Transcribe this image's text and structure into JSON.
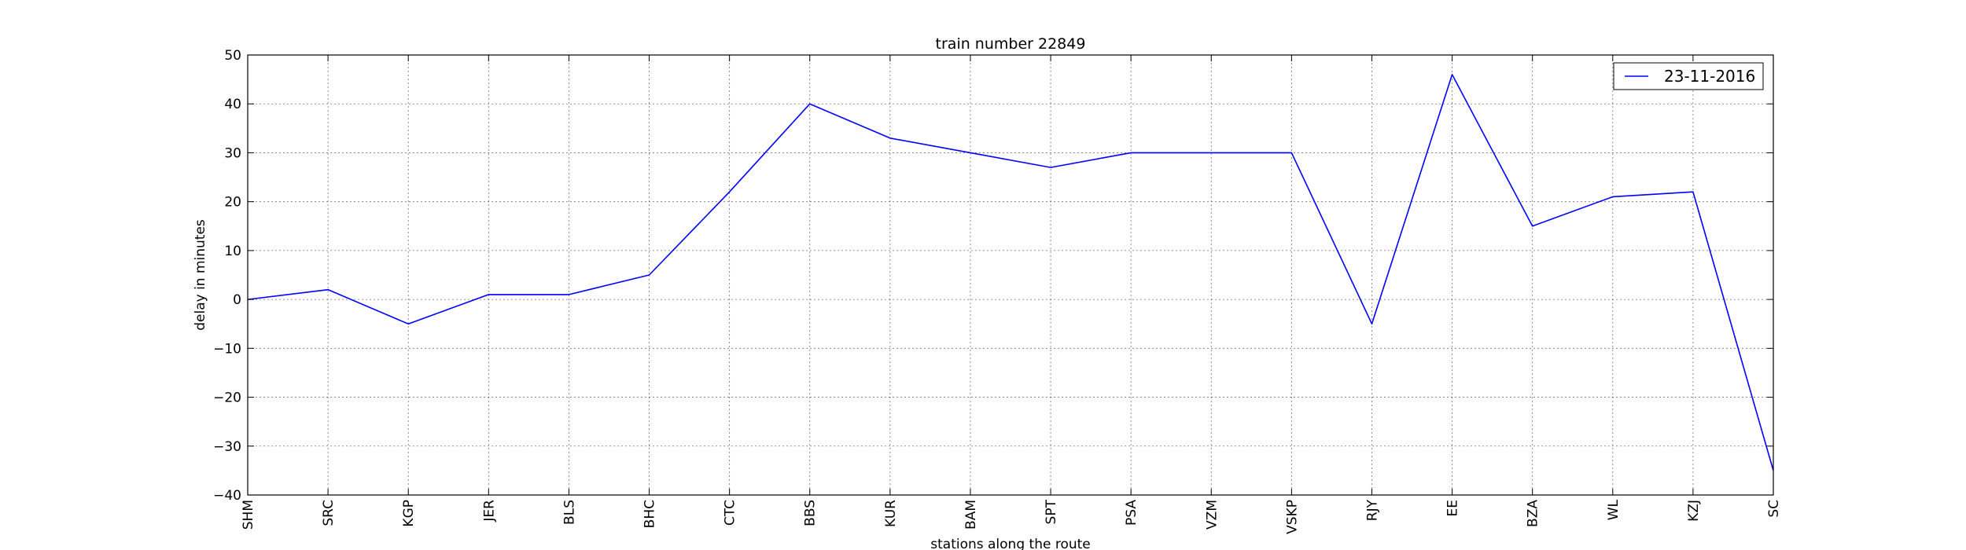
{
  "chart_data": {
    "type": "line",
    "title": "train number 22849",
    "xlabel": "stations along the route",
    "ylabel": "delay in minutes",
    "categories": [
      "SHM",
      "SRC",
      "KGP",
      "JER",
      "BLS",
      "BHC",
      "CTC",
      "BBS",
      "KUR",
      "BAM",
      "SPT",
      "PSA",
      "VZM",
      "VSKP",
      "RJY",
      "EE",
      "BZA",
      "WL",
      "KZJ",
      "SC"
    ],
    "series": [
      {
        "name": "23-11-2016",
        "color": "#0000ff",
        "values": [
          0,
          2,
          -5,
          1,
          1,
          5,
          22,
          40,
          33,
          30,
          27,
          30,
          30,
          30,
          -5,
          46,
          15,
          21,
          22,
          -35
        ]
      }
    ],
    "ylim": [
      -40,
      50
    ],
    "yticks": [
      -40,
      -30,
      -20,
      -10,
      0,
      10,
      20,
      30,
      40,
      50
    ],
    "ytick_labels": [
      "−40",
      "−30",
      "−20",
      "−10",
      "0",
      "10",
      "20",
      "30",
      "40",
      "50"
    ],
    "grid": true,
    "legend_position": "top-right"
  }
}
